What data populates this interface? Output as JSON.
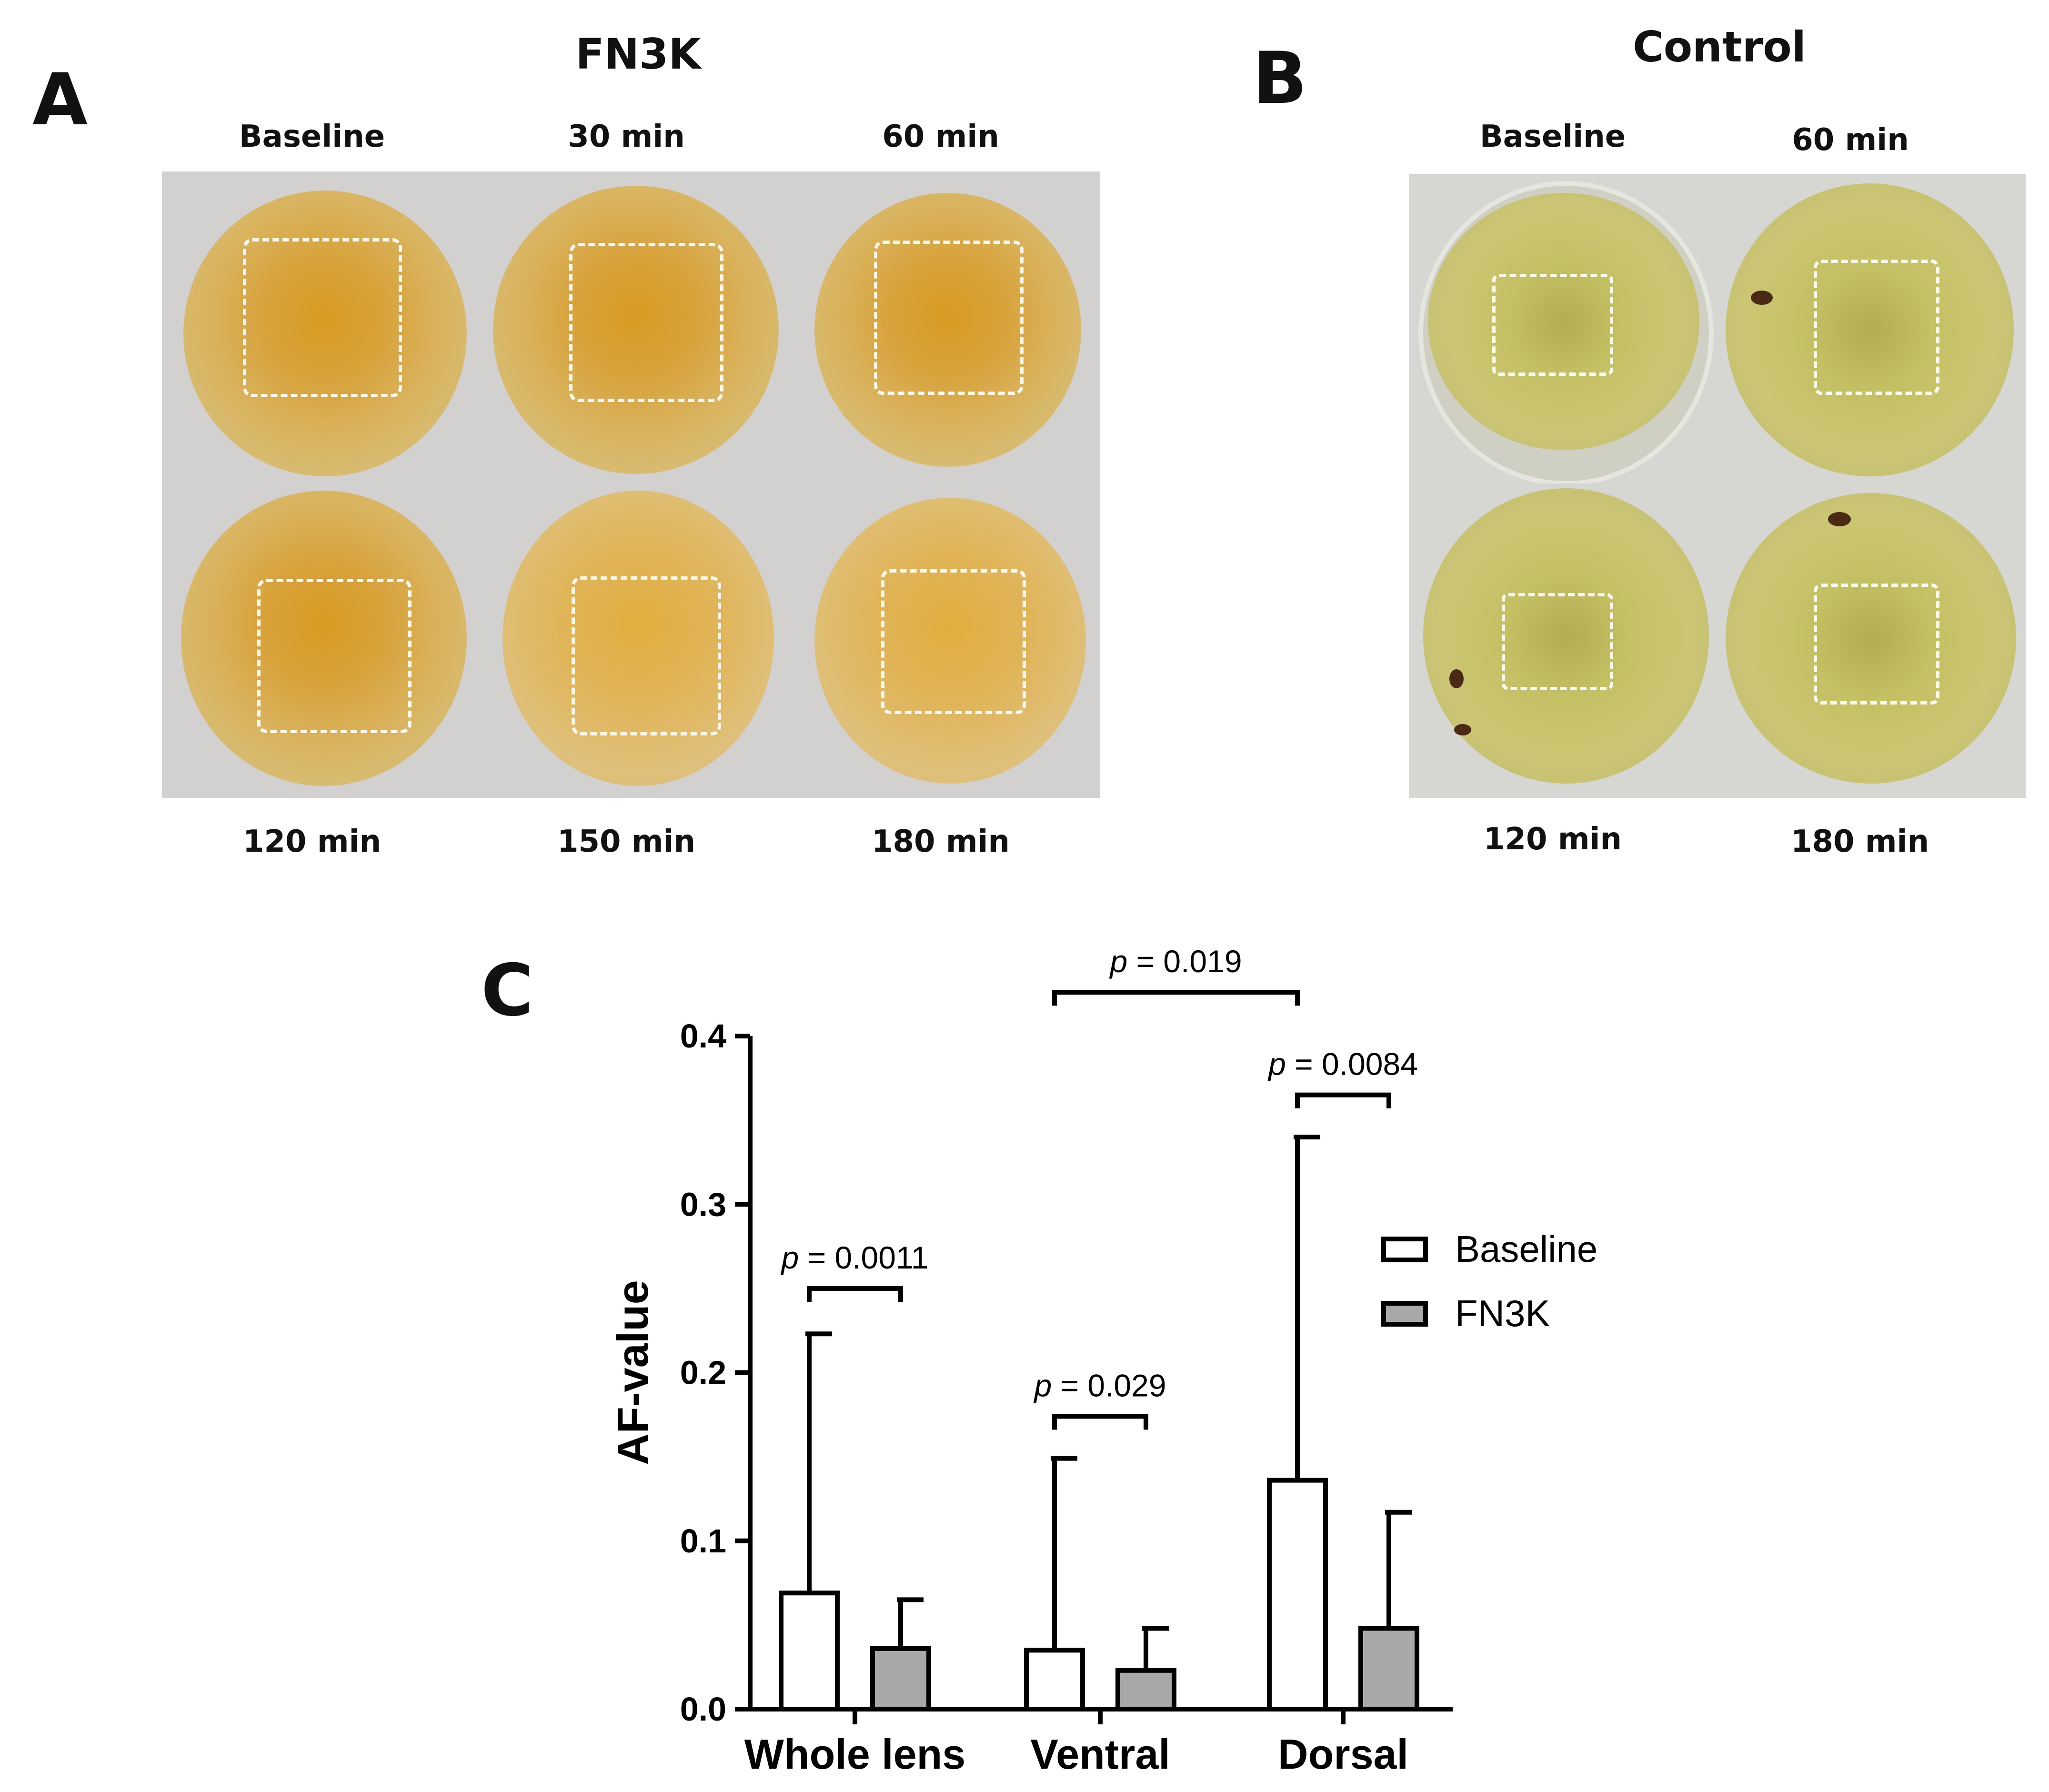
{
  "panels": {
    "a": {
      "letter": "A",
      "title": "FN3K",
      "timepoints": [
        "Baseline",
        "30 min",
        "60 min",
        "120 min",
        "150 min",
        "180 min"
      ]
    },
    "b": {
      "letter": "B",
      "title": "Control",
      "timepoints": [
        "Baseline",
        "60 min",
        "120 min",
        "180 min"
      ]
    },
    "c": {
      "letter": "C"
    }
  },
  "chart_data": {
    "type": "bar",
    "categories": [
      "Whole lens",
      "Ventral",
      "Dorsal"
    ],
    "series": [
      {
        "name": "Baseline",
        "values": [
          0.069,
          0.035,
          0.136
        ],
        "error": [
          0.154,
          0.114,
          0.204
        ],
        "color": "#ffffff"
      },
      {
        "name": "FN3K",
        "values": [
          0.036,
          0.023,
          0.048
        ],
        "error": [
          0.029,
          0.025,
          0.069
        ],
        "color": "#a8a8a8"
      }
    ],
    "ylabel": "AF-value",
    "xlabel": "",
    "ylim": [
      0,
      0.4
    ],
    "yticks": [
      "0.0",
      "0.1",
      "0.2",
      "0.3",
      "0.4"
    ],
    "ytick_values": [
      0,
      0.1,
      0.2,
      0.3,
      0.4
    ],
    "legend_placement": "right",
    "annotations": [
      {
        "label": "p",
        "text": " = 0.0011",
        "group": 0,
        "from": "Baseline",
        "to": "FN3K"
      },
      {
        "label": "p",
        "text": " = 0.029",
        "group": 1,
        "from": "Baseline",
        "to": "FN3K"
      },
      {
        "label": "p",
        "text": " = 0.0084",
        "group": 2,
        "from": "Baseline",
        "to": "FN3K"
      },
      {
        "label": "p",
        "text": " = 0.019",
        "group": [
          1,
          2
        ],
        "from": "Baseline",
        "to": "Baseline"
      }
    ]
  }
}
